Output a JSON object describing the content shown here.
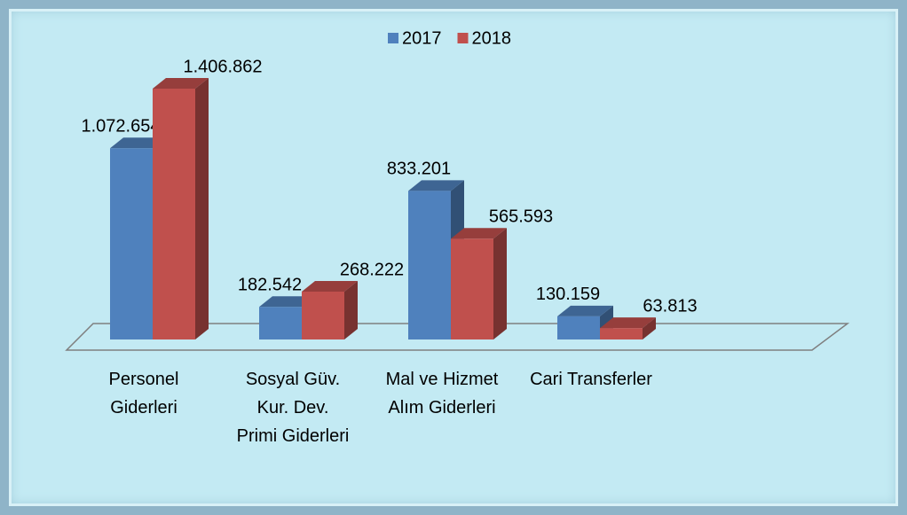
{
  "chart_data": {
    "type": "bar3d",
    "categories": [
      "Personel Giderleri",
      "Sosyal Güv. Kur. Dev. Primi Giderleri",
      "Mal ve Hizmet Alım Giderleri",
      "Cari Transferler"
    ],
    "series": [
      {
        "name": "2017",
        "color": "#4f81bd",
        "values": [
          1072654,
          182542,
          833201,
          130159
        ],
        "value_labels": [
          "1.072.654",
          "182.542",
          "833.201",
          "130.159"
        ]
      },
      {
        "name": "2018",
        "color": "#c0504d",
        "values": [
          1406862,
          268222,
          565593,
          63813
        ],
        "value_labels": [
          "1.406.862",
          "268.222",
          "565.593",
          "63.813"
        ]
      }
    ],
    "legend": "top"
  }
}
